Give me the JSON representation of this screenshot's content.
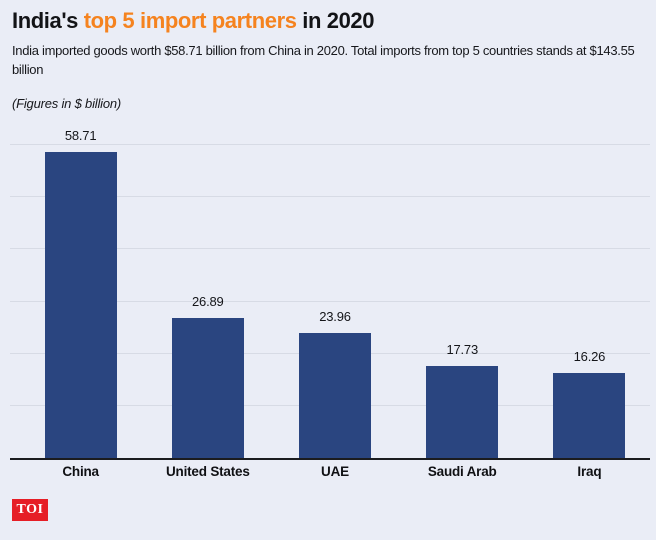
{
  "header": {
    "title_prefix": "India's ",
    "title_highlight": "top 5 import partners",
    "title_suffix": " in 2020",
    "subtitle": "India imported goods worth $58.71 billion from China in 2020. Total imports from top 5 countries stands at $143.55 billion",
    "note": "(Figures in $ billion)"
  },
  "chart_data": {
    "type": "bar",
    "title": "India's top 5 import partners in 2020",
    "unit": "$ billion",
    "categories": [
      "China",
      "United States",
      "UAE",
      "Saudi Arab",
      "Iraq"
    ],
    "values": [
      58.71,
      26.89,
      23.96,
      17.73,
      16.26
    ],
    "value_labels": [
      "58.71",
      "26.89",
      "23.96",
      "17.73",
      "16.26"
    ],
    "ylim": [
      0,
      60
    ],
    "grid_interval": 10,
    "grid": true,
    "legend": false,
    "value_labels_shown": true,
    "bar_color": "#2a4580"
  },
  "footer": {
    "logo_text": "TOI"
  },
  "colors": {
    "background": "#eaedf6",
    "accent_orange": "#f5831f",
    "bar_blue": "#2a4580",
    "gridline": "#d7dbe5",
    "axis": "#1b1c1f",
    "text": "#131417",
    "logo_red": "#e61e26",
    "logo_text_color": "#ffffff"
  }
}
